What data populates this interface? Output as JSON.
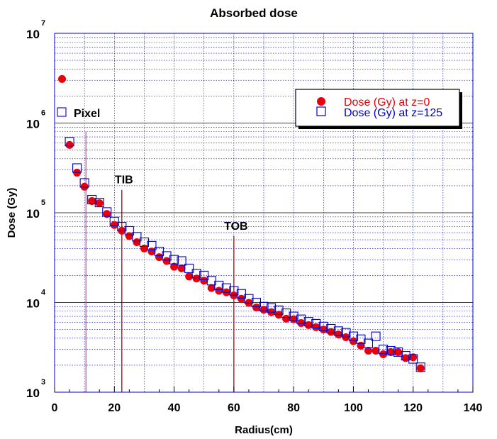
{
  "chart_data": {
    "type": "scatter",
    "title": "Absorbed dose",
    "xlabel": "Radius(cm)",
    "ylabel": "Dose (Gy)",
    "xlim": [
      0,
      140
    ],
    "ylim": [
      1000,
      10000000
    ],
    "yscale": "log",
    "grid": true,
    "legend_position": "top-right",
    "x_ticks": [
      "0",
      "20",
      "40",
      "60",
      "80",
      "100",
      "120",
      "140"
    ],
    "y_ticks": [
      {
        "base": "10",
        "exp": "3",
        "value": 1000
      },
      {
        "base": "10",
        "exp": "4",
        "value": 10000
      },
      {
        "base": "10",
        "exp": "5",
        "value": 100000
      },
      {
        "base": "10",
        "exp": "6",
        "value": 1000000
      },
      {
        "base": "10",
        "exp": "7",
        "value": 10000000
      }
    ],
    "series": [
      {
        "name": "Dose (Gy) at z=0",
        "marker": "filled-circle",
        "color": "#e8000b",
        "points": [
          [
            2.5,
            3100000
          ],
          [
            5,
            570000
          ],
          [
            7.5,
            280000
          ],
          [
            10,
            195000
          ],
          [
            12.5,
            135000
          ],
          [
            15,
            128000
          ],
          [
            17.5,
            97000
          ],
          [
            20,
            73000
          ],
          [
            22.5,
            63000
          ],
          [
            25,
            55000
          ],
          [
            27.5,
            47000
          ],
          [
            30,
            40000
          ],
          [
            32.5,
            37000
          ],
          [
            35,
            32000
          ],
          [
            37.5,
            29000
          ],
          [
            40,
            25000
          ],
          [
            42.5,
            24000
          ],
          [
            45,
            19500
          ],
          [
            47.5,
            18500
          ],
          [
            50,
            17500
          ],
          [
            52.5,
            14500
          ],
          [
            55,
            13500
          ],
          [
            57.5,
            13000
          ],
          [
            60,
            12000
          ],
          [
            62.5,
            11000
          ],
          [
            65,
            9900
          ],
          [
            67.5,
            8800
          ],
          [
            70,
            8300
          ],
          [
            72.5,
            7800
          ],
          [
            75,
            7300
          ],
          [
            77.5,
            6600
          ],
          [
            80,
            6500
          ],
          [
            82.5,
            5900
          ],
          [
            85,
            5600
          ],
          [
            87.5,
            5300
          ],
          [
            90,
            5000
          ],
          [
            92.5,
            4700
          ],
          [
            95,
            4400
          ],
          [
            97.5,
            4100
          ],
          [
            100,
            3700
          ],
          [
            102.5,
            3300
          ],
          [
            105,
            2900
          ],
          [
            107.5,
            2900
          ],
          [
            110,
            2650
          ],
          [
            112.5,
            2800
          ],
          [
            115,
            2800
          ],
          [
            117.5,
            2400
          ],
          [
            120,
            2450
          ],
          [
            122.5,
            1850
          ]
        ]
      },
      {
        "name": "Dose (Gy) at z=125",
        "marker": "open-square",
        "color": "#0000cc",
        "points": [
          [
            5,
            620000
          ],
          [
            7.5,
            315000
          ],
          [
            10,
            215000
          ],
          [
            12.5,
            140000
          ],
          [
            15,
            130000
          ],
          [
            17.5,
            102000
          ],
          [
            20,
            80000
          ],
          [
            22.5,
            70000
          ],
          [
            25,
            63000
          ],
          [
            27.5,
            54000
          ],
          [
            30,
            47000
          ],
          [
            32.5,
            43000
          ],
          [
            35,
            37000
          ],
          [
            37.5,
            33000
          ],
          [
            40,
            30000
          ],
          [
            42.5,
            29000
          ],
          [
            45,
            24000
          ],
          [
            47.5,
            21000
          ],
          [
            50,
            20000
          ],
          [
            52.5,
            17500
          ],
          [
            55,
            15500
          ],
          [
            57.5,
            14500
          ],
          [
            60,
            13500
          ],
          [
            62.5,
            12500
          ],
          [
            65,
            11000
          ],
          [
            67.5,
            10000
          ],
          [
            70,
            9000
          ],
          [
            72.5,
            8700
          ],
          [
            75,
            8200
          ],
          [
            77.5,
            7600
          ],
          [
            80,
            7000
          ],
          [
            82.5,
            6500
          ],
          [
            85,
            6100
          ],
          [
            87.5,
            5800
          ],
          [
            90,
            5400
          ],
          [
            92.5,
            5100
          ],
          [
            95,
            4800
          ],
          [
            97.5,
            4600
          ],
          [
            100,
            4200
          ],
          [
            102.5,
            3900
          ],
          [
            105,
            3500
          ],
          [
            107.5,
            4200
          ],
          [
            110,
            3000
          ],
          [
            112.5,
            2900
          ],
          [
            115,
            2800
          ],
          [
            117.5,
            2550
          ],
          [
            120,
            2350
          ],
          [
            122.5,
            1900
          ]
        ]
      }
    ],
    "annotations": [
      {
        "text": "Pixel",
        "x": 10.5,
        "y_top": 800000,
        "color": "#cc33cc",
        "marker": "open-square"
      },
      {
        "text": "TIB",
        "x": 22.5,
        "y_top": 180000,
        "color": "#8b0000"
      },
      {
        "text": "TOB",
        "x": 60,
        "y_top": 55000,
        "color": "#8b0000"
      }
    ]
  }
}
